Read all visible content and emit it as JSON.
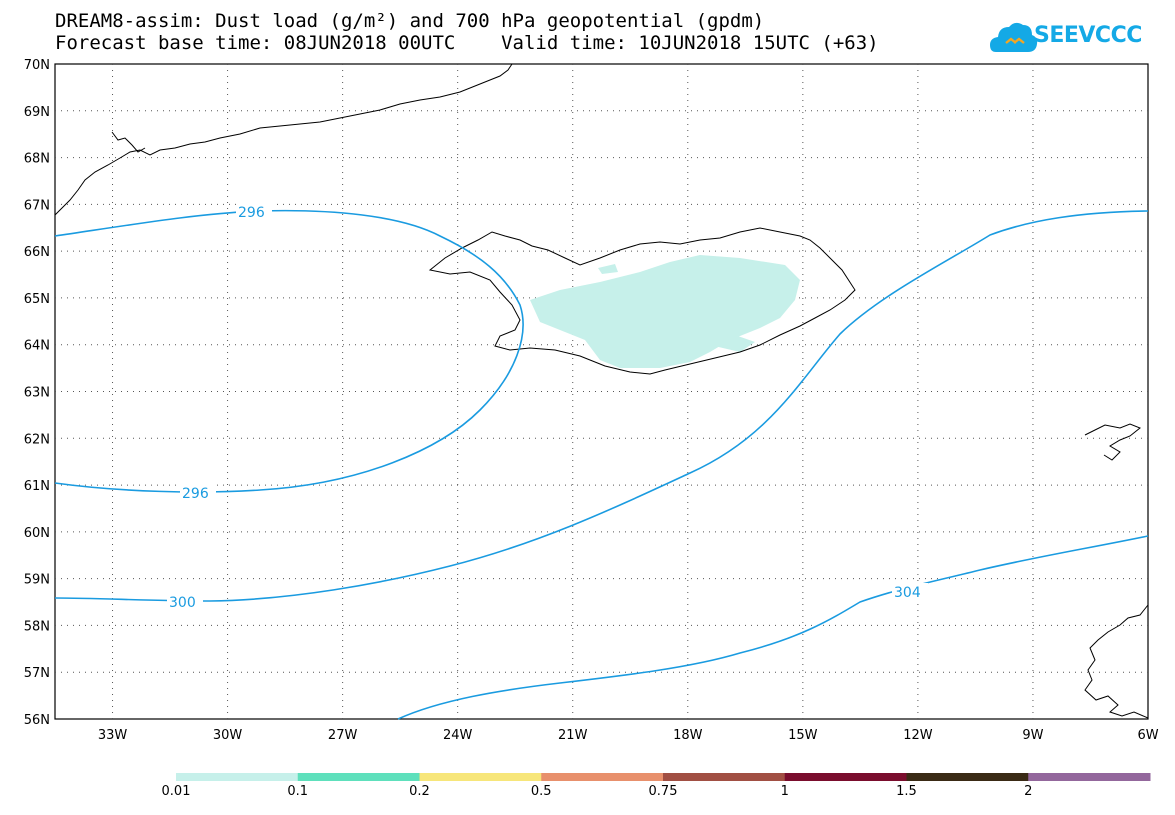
{
  "title_line1": "DREAM8-assim: Dust load (g/m²) and 700 hPa geopotential (gpdm)",
  "title_line2": "Forecast base time: 08JUN2018 00UTC    Valid time: 10JUN2018 15UTC (+63)",
  "logo_text": "SEEVCCC",
  "map": {
    "lat_labels": [
      "70N",
      "69N",
      "68N",
      "67N",
      "66N",
      "65N",
      "64N",
      "63N",
      "62N",
      "61N",
      "60N",
      "59N",
      "58N",
      "57N",
      "56N"
    ],
    "lon_labels": [
      "33W",
      "30W",
      "27W",
      "24W",
      "21W",
      "18W",
      "15W",
      "12W",
      "9W",
      "6W"
    ],
    "lat_range": [
      56,
      70
    ],
    "lon_range": [
      -34.5,
      -6
    ],
    "contour_color": "#1a9be0",
    "contours": [
      {
        "value": "296",
        "label_a": "296",
        "label_b": "296"
      },
      {
        "value": "300",
        "label": "300"
      },
      {
        "value": "304",
        "label": "304"
      }
    ],
    "dust_fill_color": "#c6f0ea"
  },
  "colorbar": {
    "colors": [
      "#c6f0ea",
      "#5ee0bc",
      "#f7e67a",
      "#e8906c",
      "#a14f43",
      "#7a0d2d",
      "#3a2a15",
      "#93679c"
    ],
    "labels": [
      "0.01",
      "0.1",
      "0.2",
      "0.5",
      "0.75",
      "1",
      "1.5",
      "2"
    ]
  }
}
